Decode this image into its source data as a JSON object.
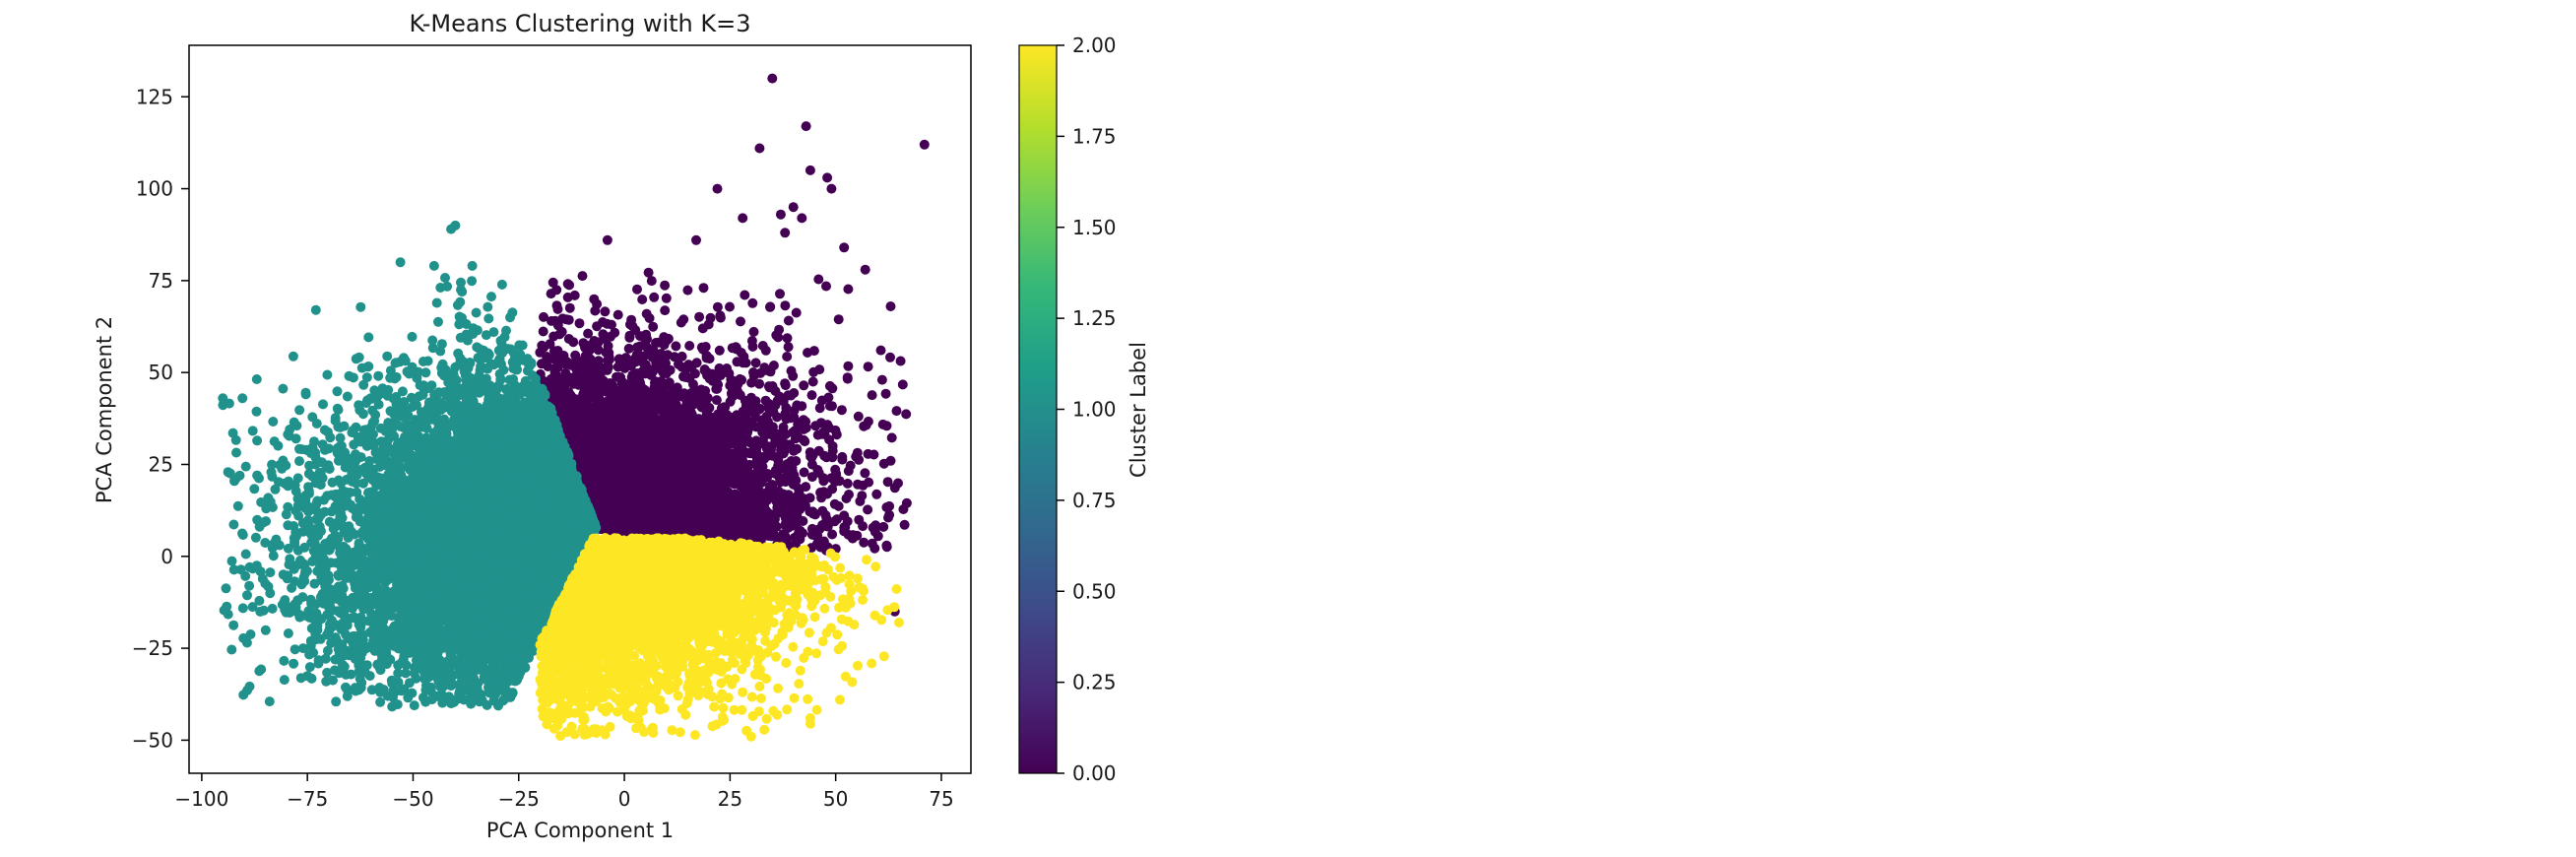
{
  "chart_data": {
    "type": "scatter",
    "title": "K-Means Clustering with K=3",
    "xlabel": "PCA Component 1",
    "ylabel": "PCA Component 2",
    "xlim": [
      -103,
      82
    ],
    "ylim": [
      -59,
      139
    ],
    "xticks": [
      -100,
      -75,
      -50,
      -25,
      0,
      25,
      50,
      75
    ],
    "yticks": [
      -50,
      -25,
      0,
      25,
      50,
      75,
      100,
      125
    ],
    "xtick_labels": [
      "−100",
      "−75",
      "−50",
      "−25",
      "0",
      "25",
      "50",
      "75"
    ],
    "ytick_labels": [
      "−50",
      "−25",
      "0",
      "25",
      "50",
      "75",
      "100",
      "125"
    ],
    "grid": false,
    "legend": "none",
    "colorbar": {
      "label": "Cluster Label",
      "range": [
        0.0,
        2.0
      ],
      "ticks": [
        0.0,
        0.25,
        0.5,
        0.75,
        1.0,
        1.25,
        1.5,
        1.75,
        2.0
      ],
      "tick_labels": [
        "0.00",
        "0.25",
        "0.50",
        "0.75",
        "1.00",
        "1.25",
        "1.50",
        "1.75",
        "2.00"
      ],
      "colormap": "viridis",
      "stops": [
        "#440154",
        "#482878",
        "#3e4a89",
        "#31688e",
        "#26828e",
        "#1f9e89",
        "#35b779",
        "#6ece58",
        "#b5de2b",
        "#fde725"
      ]
    },
    "series": [
      {
        "cluster": 0,
        "color": "#440154",
        "approx_extent": {
          "x": [
            -20,
            67
          ],
          "y": [
            -12,
            80
          ]
        },
        "outliers": [
          [
            35,
            130
          ],
          [
            43,
            117
          ],
          [
            71,
            112
          ],
          [
            32,
            111
          ],
          [
            44,
            105
          ],
          [
            48,
            103
          ],
          [
            49,
            100
          ],
          [
            22,
            100
          ],
          [
            40,
            95
          ],
          [
            37,
            93
          ],
          [
            28,
            92
          ],
          [
            42,
            92
          ],
          [
            38,
            88
          ],
          [
            17,
            86
          ],
          [
            -4,
            86
          ],
          [
            52,
            84
          ],
          [
            57,
            78
          ],
          [
            63,
            68
          ],
          [
            61,
            48
          ],
          [
            63,
            26
          ],
          [
            64,
            -15
          ]
        ]
      },
      {
        "cluster": 1,
        "color": "#21918c",
        "approx_extent": {
          "x": [
            -95,
            -5
          ],
          "y": [
            -41,
            90
          ]
        },
        "outliers": [
          [
            -40,
            90
          ],
          [
            -41,
            89
          ],
          [
            -53,
            80
          ],
          [
            -45,
            79
          ],
          [
            -36,
            79
          ],
          [
            -73,
            67
          ],
          [
            -95,
            43
          ],
          [
            -91,
            22
          ],
          [
            -92,
            21
          ],
          [
            -76,
            -25
          ],
          [
            -56,
            -38
          ],
          [
            -41,
            -40
          ],
          [
            -38,
            -39
          ]
        ]
      },
      {
        "cluster": 2,
        "color": "#fde725",
        "approx_extent": {
          "x": [
            -20,
            66
          ],
          "y": [
            -49,
            5
          ]
        },
        "outliers": [
          [
            -17,
            -44
          ],
          [
            30,
            -49
          ],
          [
            44,
            -44
          ],
          [
            51,
            -39
          ],
          [
            65,
            -18
          ]
        ]
      }
    ]
  }
}
